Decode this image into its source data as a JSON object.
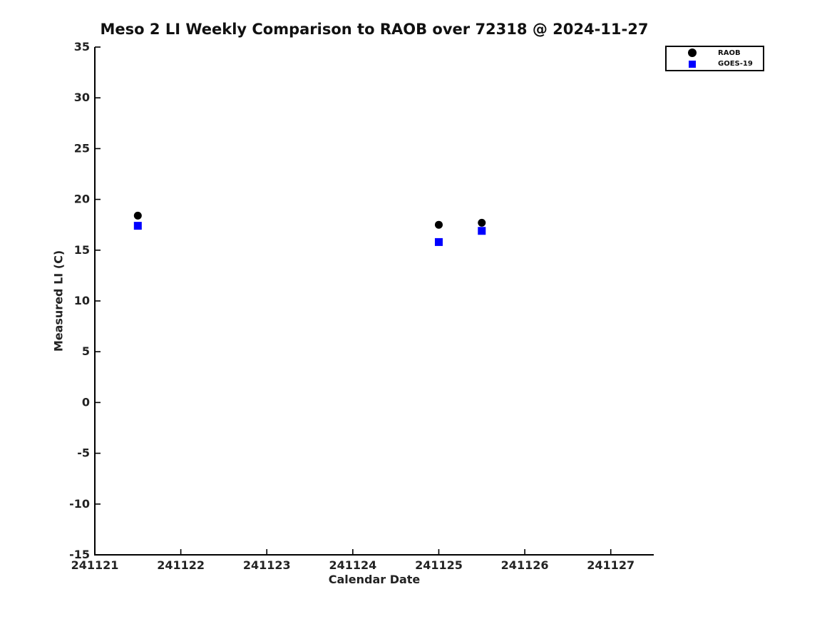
{
  "figure": {
    "background": "#ffffff"
  },
  "chart_data": {
    "type": "scatter",
    "title": "Meso 2 LI Weekly Comparison to RAOB over 72318 @ 2024-11-27",
    "xlabel": "Calendar Date",
    "ylabel": "Measured LI (C)",
    "xlim": [
      241121,
      241127.5
    ],
    "ylim": [
      -15,
      35
    ],
    "xticks": [
      241121,
      241122,
      241123,
      241124,
      241125,
      241126,
      241127
    ],
    "yticks": [
      -15,
      -10,
      -5,
      0,
      5,
      10,
      15,
      20,
      25,
      30,
      35
    ],
    "grid": false,
    "legend_position": "top-right",
    "axis_color": "#000000",
    "series": [
      {
        "name": "RAOB",
        "marker": "circle",
        "color": "#000000",
        "x": [
          241121.5,
          241125.0,
          241125.5
        ],
        "y": [
          18.4,
          17.5,
          17.7
        ]
      },
      {
        "name": "GOES-19",
        "marker": "square",
        "color": "#0000ff",
        "x": [
          241121.5,
          241125.0,
          241125.5
        ],
        "y": [
          17.4,
          15.8,
          16.9
        ]
      }
    ]
  }
}
